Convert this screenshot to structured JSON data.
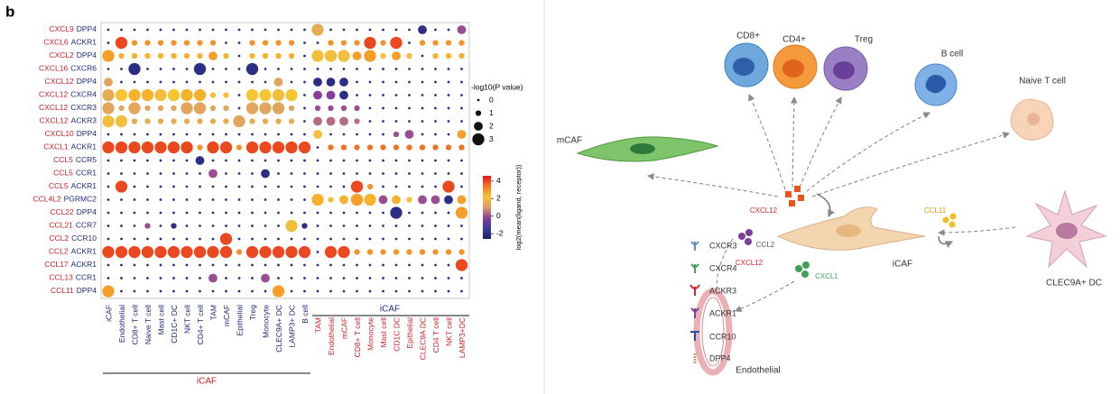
{
  "panel_label": "b",
  "chart_data": {
    "type": "dotplot",
    "ligands": [
      "CXCL9",
      "CXCL6",
      "CXCL2",
      "CXCL16",
      "CXCL12",
      "CXCL12",
      "CXCL12",
      "CXCL12",
      "CXCL10",
      "CXCL1",
      "CCL5",
      "CCL5",
      "CCL5",
      "CCL4L2",
      "CCL22",
      "CCL21",
      "CCL2",
      "CCL2",
      "CCL17",
      "CCL13",
      "CCL11"
    ],
    "receptors": [
      "DPP4",
      "ACKR1",
      "DPP4",
      "CXCR6",
      "DPP4",
      "CXCR4",
      "CXCR3",
      "ACKR3",
      "DPP4",
      "ACKR1",
      "CCR5",
      "CCR1",
      "ACKR1",
      "PGRMC2",
      "DPP4",
      "CCR7",
      "CCR10",
      "ACKR1",
      "ACKR1",
      "CCR1",
      "DPP4"
    ],
    "sender_columns": [
      "iCAF",
      "Endothelial",
      "CD8+ T cell",
      "Naive T cell",
      "Mast cell",
      "CD1C+ DC",
      "NKT cell",
      "CD4+ T cell",
      "TAM",
      "mCAF",
      "Epithelial",
      "Treg",
      "Monocyte",
      "CLEC9A+ DC",
      "LAMP3+ DC",
      "B cell"
    ],
    "receiver_columns": [
      "TAM",
      "Endothelial",
      "mCAF",
      "CD8+ T cell",
      "Monocyte",
      "Mast cell",
      "CD1C DC",
      "Epithelial",
      "CLEC9A DC",
      "CD4 T cell",
      "NKT cell",
      "LAMP3+DC"
    ],
    "sender_group_label": "iCAF",
    "receiver_group_label": "iCAF",
    "size_title": "-log10(P value)",
    "size_legend": [
      0,
      1,
      2,
      3
    ],
    "color_title": "log2(mean(ligand, receptor))",
    "colorlim": [
      -2.6,
      4.6
    ],
    "colorticks": [
      4,
      2,
      0,
      -2
    ],
    "colormap": [
      "#1b1f6e",
      "#3a3c9a",
      "#8b3f98",
      "#d99a6c",
      "#f7c531",
      "#f27a22",
      "#e4161c"
    ],
    "sizes": [
      [
        0,
        0,
        0,
        0,
        0,
        0,
        0,
        0,
        0,
        0,
        0,
        0,
        0,
        0,
        0,
        0,
        3,
        0,
        0,
        0,
        0,
        0,
        0,
        0,
        2,
        0,
        0,
        2
      ],
      [
        0,
        3,
        1,
        1,
        1,
        1,
        1,
        1,
        1,
        0,
        0,
        1,
        1,
        1,
        1,
        0,
        0,
        1,
        1,
        1,
        3,
        1,
        3,
        0,
        1,
        1,
        1,
        1
      ],
      [
        3,
        1,
        1,
        1,
        1,
        1,
        1,
        1,
        2,
        1,
        0,
        1,
        1,
        1,
        1,
        0,
        3,
        3,
        3,
        2,
        3,
        1,
        2,
        1,
        0,
        1,
        1,
        1
      ],
      [
        0,
        0,
        3,
        0,
        0,
        0,
        0,
        3,
        0,
        0,
        0,
        3,
        0,
        0,
        0,
        0,
        0,
        0,
        0,
        0,
        0,
        0,
        0,
        0,
        0,
        0,
        0,
        0
      ],
      [
        2,
        0,
        0,
        0,
        0,
        0,
        0,
        0,
        0,
        0,
        0,
        0,
        0,
        2,
        0,
        0,
        2,
        2,
        2,
        0,
        0,
        0,
        0,
        0,
        0,
        0,
        0,
        0
      ],
      [
        3,
        3,
        3,
        3,
        3,
        3,
        3,
        3,
        1,
        1,
        0,
        3,
        3,
        3,
        3,
        0,
        2,
        2,
        2,
        0,
        0,
        0,
        0,
        0,
        0,
        0,
        0,
        0
      ],
      [
        3,
        1,
        3,
        1,
        1,
        1,
        3,
        3,
        1,
        1,
        0,
        3,
        3,
        3,
        1,
        0,
        1,
        1,
        1,
        1,
        0,
        0,
        0,
        0,
        0,
        0,
        0,
        0
      ],
      [
        3,
        3,
        1,
        1,
        1,
        1,
        1,
        1,
        1,
        1,
        3,
        1,
        1,
        1,
        1,
        0,
        2,
        2,
        2,
        1,
        0,
        0,
        0,
        0,
        0,
        0,
        0,
        0
      ],
      [
        0,
        0,
        0,
        0,
        0,
        0,
        0,
        0,
        0,
        0,
        0,
        0,
        0,
        0,
        0,
        0,
        2,
        0,
        0,
        0,
        0,
        0,
        1,
        2,
        0,
        0,
        0,
        2
      ],
      [
        3,
        3,
        3,
        3,
        3,
        3,
        3,
        1,
        3,
        3,
        1,
        3,
        3,
        3,
        3,
        3,
        0,
        1,
        1,
        1,
        1,
        1,
        1,
        1,
        1,
        1,
        1,
        1
      ],
      [
        0,
        0,
        0,
        0,
        0,
        0,
        0,
        2,
        0,
        0,
        0,
        0,
        0,
        0,
        0,
        0,
        0,
        0,
        0,
        0,
        0,
        0,
        0,
        0,
        0,
        0,
        0,
        0
      ],
      [
        0,
        0,
        0,
        0,
        0,
        0,
        0,
        0,
        2,
        0,
        0,
        0,
        2,
        0,
        0,
        0,
        0,
        0,
        0,
        0,
        0,
        0,
        0,
        0,
        0,
        0,
        0,
        0
      ],
      [
        0,
        3,
        0,
        0,
        0,
        0,
        0,
        0,
        0,
        0,
        0,
        0,
        0,
        0,
        0,
        0,
        0,
        0,
        0,
        3,
        1,
        0,
        0,
        0,
        0,
        0,
        3,
        0
      ],
      [
        0,
        0,
        0,
        0,
        0,
        0,
        0,
        0,
        0,
        0,
        0,
        0,
        0,
        0,
        0,
        0,
        3,
        1,
        2,
        3,
        3,
        2,
        2,
        1,
        2,
        2,
        2,
        2
      ],
      [
        0,
        0,
        0,
        0,
        0,
        0,
        0,
        0,
        0,
        0,
        0,
        0,
        0,
        0,
        0,
        0,
        0,
        0,
        0,
        0,
        0,
        0,
        3,
        0,
        0,
        0,
        0,
        3
      ],
      [
        0,
        0,
        0,
        1,
        0,
        1,
        0,
        0,
        0,
        0,
        0,
        0,
        0,
        0,
        3,
        1,
        0,
        0,
        0,
        0,
        0,
        0,
        0,
        0,
        0,
        0,
        0,
        0
      ],
      [
        0,
        0,
        0,
        0,
        0,
        0,
        0,
        0,
        0,
        3,
        0,
        0,
        0,
        0,
        0,
        0,
        0,
        0,
        0,
        0,
        0,
        0,
        0,
        0,
        0,
        0,
        0,
        0
      ],
      [
        3,
        3,
        3,
        3,
        3,
        3,
        3,
        3,
        3,
        3,
        1,
        3,
        3,
        3,
        3,
        3,
        0,
        3,
        3,
        1,
        1,
        1,
        1,
        1,
        1,
        1,
        1,
        1
      ],
      [
        0,
        0,
        0,
        0,
        0,
        0,
        0,
        0,
        0,
        0,
        0,
        0,
        0,
        0,
        0,
        0,
        0,
        0,
        0,
        0,
        0,
        0,
        0,
        0,
        0,
        0,
        0,
        3
      ],
      [
        0,
        0,
        0,
        0,
        0,
        0,
        0,
        0,
        2,
        0,
        0,
        0,
        2,
        0,
        0,
        0,
        0,
        0,
        0,
        0,
        0,
        0,
        0,
        0,
        0,
        0,
        0,
        0
      ],
      [
        3,
        0,
        0,
        0,
        0,
        0,
        0,
        0,
        0,
        0,
        0,
        0,
        0,
        3,
        0,
        0,
        0,
        0,
        0,
        0,
        0,
        0,
        0,
        0,
        0,
        0,
        0,
        0
      ]
    ],
    "values": [
      [
        -2,
        -2,
        -2,
        -2,
        -2,
        -2,
        -2,
        -2,
        -2,
        -2,
        -2,
        -2,
        -2,
        -2,
        -2,
        -2,
        1.5,
        -2,
        -2,
        -2,
        -2,
        -2,
        -2,
        -2,
        -2,
        -2,
        -2,
        0
      ],
      [
        -2,
        4,
        3,
        3,
        3,
        3,
        3,
        3,
        3,
        -2,
        -2,
        3,
        3,
        3,
        3,
        -2,
        -2,
        3,
        3,
        3,
        4,
        3,
        4,
        -2,
        3,
        3,
        3,
        3
      ],
      [
        2.8,
        2.5,
        2.5,
        2.5,
        2.5,
        2.5,
        2.5,
        2.5,
        2.8,
        2.5,
        -2,
        2.5,
        2.5,
        2.5,
        2.5,
        -2,
        2,
        2,
        2,
        2.8,
        2.8,
        2,
        2.8,
        2,
        -2,
        2.5,
        2.5,
        2.5
      ],
      [
        -2,
        -2,
        -2,
        -2,
        -2,
        -2,
        -2,
        -2,
        -2,
        -2,
        -2,
        -2,
        -2,
        -2,
        -2,
        -2,
        -2,
        -2,
        -2,
        -2,
        -2,
        -2,
        -2,
        -2,
        -2,
        -2,
        -2,
        -2
      ],
      [
        1.3,
        -2,
        -2,
        -2,
        -2,
        -2,
        -2,
        -2,
        -2,
        -2,
        -2,
        -2,
        -2,
        1.3,
        -2,
        -2,
        -2,
        -2,
        -2,
        -2,
        -2,
        -2,
        -2,
        -2,
        -2,
        -2,
        -2,
        -2
      ],
      [
        1.5,
        2.2,
        2.5,
        2.5,
        2,
        2.2,
        2.5,
        2.5,
        2,
        2,
        -2,
        2.2,
        2.2,
        2,
        2.2,
        -2,
        -0.3,
        -0.3,
        -2,
        -2,
        -2,
        -2,
        -2,
        -2,
        -2,
        -2,
        -2,
        -2
      ],
      [
        1.3,
        1.3,
        1.3,
        1.3,
        1.3,
        1.3,
        1.3,
        1.3,
        1.3,
        1.3,
        -2,
        1.3,
        1.3,
        1.3,
        1.3,
        -2,
        0,
        0,
        0,
        0,
        -2,
        -2,
        -2,
        -2,
        -2,
        -2,
        -2,
        -2
      ],
      [
        2,
        2,
        1.5,
        1.5,
        1.5,
        1.5,
        1.5,
        1.5,
        1.5,
        1.5,
        1.3,
        1.5,
        1.5,
        1.5,
        1.5,
        -2,
        0.4,
        0.4,
        0.4,
        0.4,
        -2,
        -2,
        -2,
        -2,
        -2,
        -2,
        -2,
        -2
      ],
      [
        -2,
        -2,
        -2,
        -2,
        -2,
        -2,
        -2,
        -2,
        -2,
        -2,
        -2,
        -2,
        -2,
        -2,
        -2,
        -2,
        2,
        -2,
        -2,
        -2,
        -2,
        -2,
        0,
        0,
        -2,
        -2,
        -2,
        2.8
      ],
      [
        4,
        4,
        4,
        4,
        4,
        4,
        4,
        3,
        4,
        4,
        3,
        4,
        4,
        4,
        4,
        4,
        -2,
        3.5,
        3.5,
        3.5,
        3.5,
        3.5,
        3.5,
        3.5,
        3.5,
        3.5,
        3.5,
        3.5
      ],
      [
        -2,
        -2,
        -2,
        -2,
        -2,
        -2,
        -2,
        -2,
        -2,
        -2,
        -2,
        -2,
        -2,
        -2,
        -2,
        -2,
        -2,
        -2,
        -2,
        -2,
        -2,
        -2,
        -2,
        -2,
        -2,
        -2,
        -2,
        -2
      ],
      [
        -2,
        -2,
        -2,
        -2,
        -2,
        -2,
        -2,
        -2,
        0,
        -2,
        -2,
        -2,
        -2,
        -2,
        -2,
        -2,
        -2,
        -2,
        -2,
        -2,
        -2,
        -2,
        -2,
        -2,
        -2,
        -2,
        -2,
        -2
      ],
      [
        -2,
        4,
        -2,
        -2,
        -2,
        -2,
        -2,
        -2,
        -2,
        -2,
        -2,
        -2,
        -2,
        -2,
        -2,
        -2,
        -2,
        -2,
        -2,
        4,
        3,
        -2,
        -2,
        -2,
        -2,
        -2,
        4,
        -2
      ],
      [
        -2,
        -2,
        -2,
        -2,
        -2,
        -2,
        -2,
        -2,
        -2,
        -2,
        -2,
        -2,
        -2,
        -2,
        -2,
        -2,
        2.5,
        2,
        2.5,
        2.8,
        2.5,
        0,
        2.5,
        2,
        0,
        0,
        -2,
        2.8
      ],
      [
        -2,
        -2,
        -2,
        -2,
        -2,
        -2,
        -2,
        -2,
        -2,
        -2,
        -2,
        -2,
        -2,
        -2,
        -2,
        -2,
        -2,
        -2,
        -2,
        -2,
        -2,
        -2,
        -2,
        -2,
        -2,
        -2,
        -2,
        2.8
      ],
      [
        -2,
        -2,
        -2,
        0,
        -2,
        -2,
        -2,
        -2,
        -2,
        -2,
        -2,
        -2,
        -2,
        -2,
        2,
        -2,
        -2,
        -2,
        -2,
        -2,
        -2,
        -2,
        -2,
        -2,
        -2,
        -2,
        -2,
        -2
      ],
      [
        -2,
        -2,
        -2,
        -2,
        -2,
        -2,
        -2,
        -2,
        -2,
        4,
        -2,
        -2,
        -2,
        -2,
        -2,
        -2,
        -2,
        -2,
        -2,
        -2,
        -2,
        -2,
        -2,
        -2,
        -2,
        -2,
        -2,
        -2
      ],
      [
        4,
        4,
        4,
        4,
        4,
        4,
        4,
        4,
        4,
        4,
        3,
        4,
        4,
        4,
        4,
        4,
        -2,
        4,
        4,
        3,
        3,
        3,
        3,
        3,
        3,
        3,
        3,
        3
      ],
      [
        -2,
        -2,
        -2,
        -2,
        -2,
        -2,
        -2,
        -2,
        -2,
        -2,
        -2,
        -2,
        -2,
        -2,
        -2,
        -2,
        -2,
        -2,
        -2,
        -2,
        -2,
        -2,
        -2,
        -2,
        -2,
        -2,
        -2,
        4
      ],
      [
        -2,
        -2,
        -2,
        -2,
        -2,
        -2,
        -2,
        -2,
        0,
        -2,
        -2,
        -2,
        0,
        -2,
        -2,
        -2,
        -2,
        -2,
        -2,
        -2,
        -2,
        -2,
        -2,
        -2,
        -2,
        -2,
        -2,
        -2
      ],
      [
        2.8,
        -2,
        -2,
        -2,
        -2,
        -2,
        -2,
        -2,
        -2,
        -2,
        -2,
        -2,
        -2,
        2.8,
        -2,
        -2,
        -2,
        -2,
        -2,
        -2,
        -2,
        -2,
        -2,
        -2,
        -2,
        -2,
        -2,
        -2
      ]
    ]
  },
  "diagram": {
    "cells": [
      "CD8+",
      "CD4+",
      "Treg",
      "B cell",
      "Naive T cell",
      "mCAF",
      "iCAF",
      "CLEC9A+ DC",
      "Endothelial"
    ],
    "ligands": [
      "CXCL12",
      "CCL11",
      "CCL2",
      "CXCL12",
      "CXCL1"
    ],
    "receptor_legend": [
      "CXCR3",
      "CXCR4",
      "ACKR3",
      "ACKR1",
      "CCR10",
      "DPP4"
    ]
  }
}
